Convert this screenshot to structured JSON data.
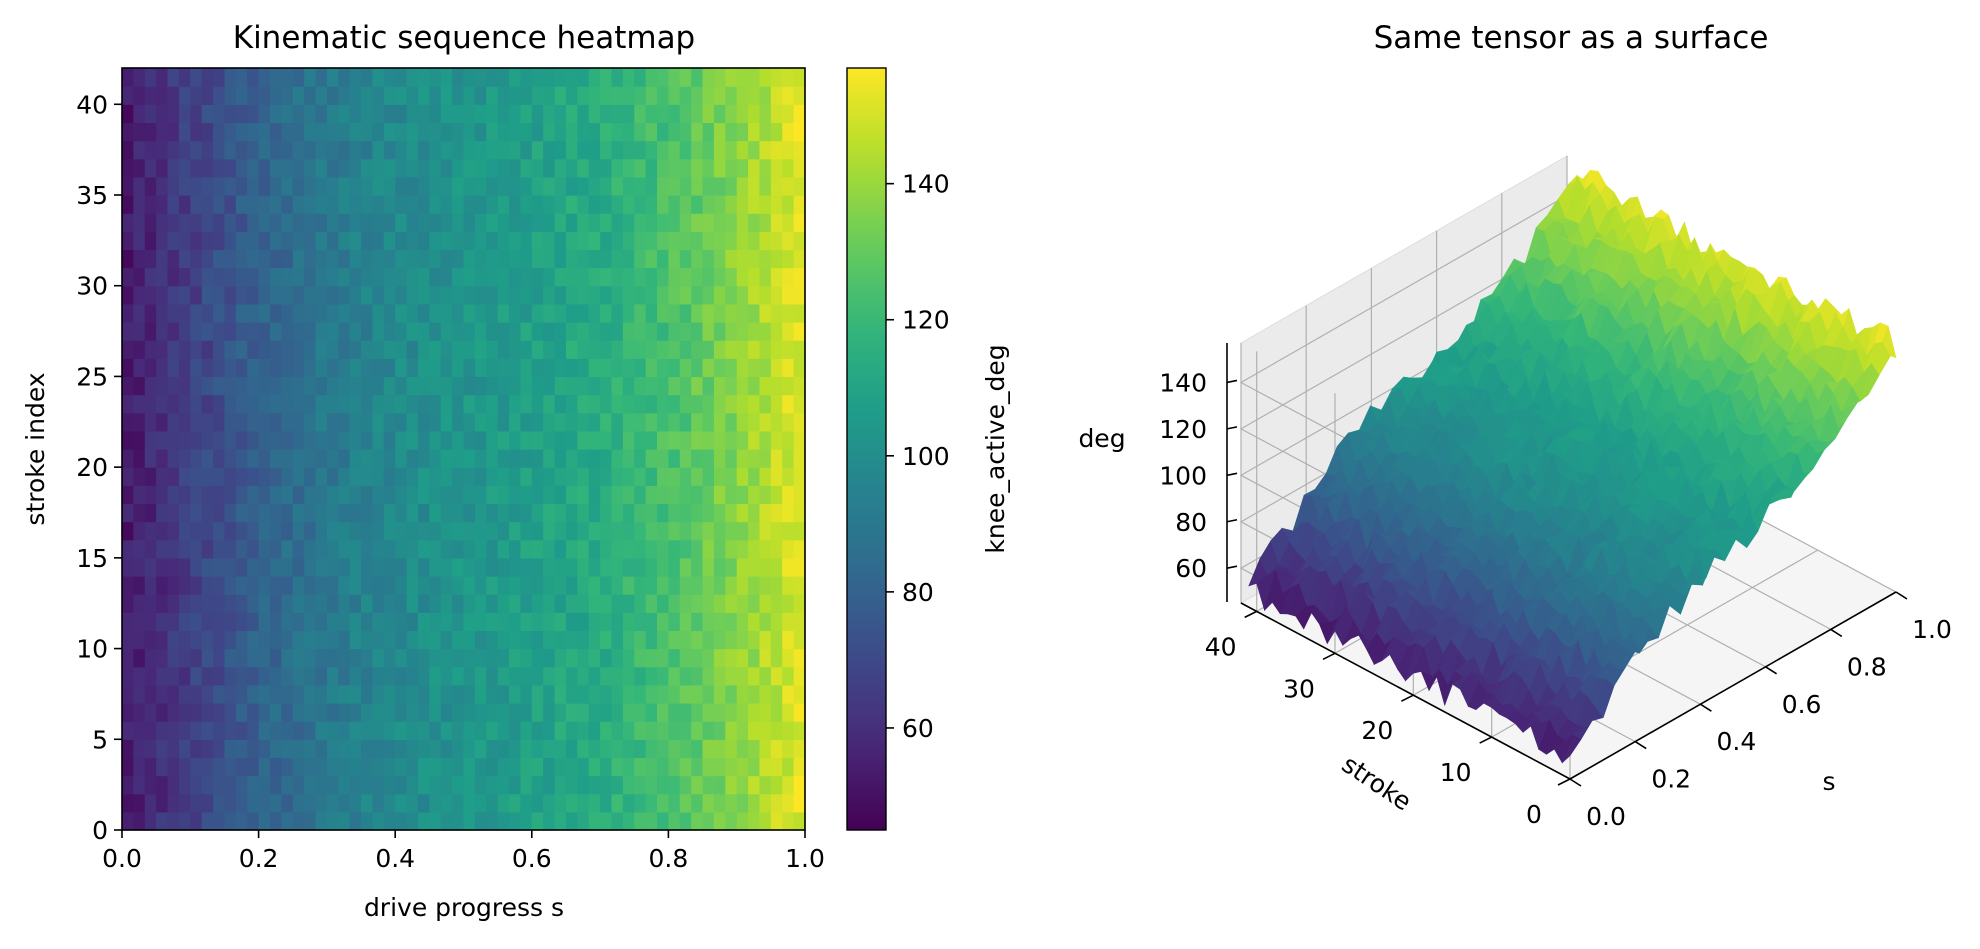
{
  "chart_data": [
    {
      "type": "heatmap",
      "title": "Kinematic sequence heatmap",
      "xlabel": "drive progress s",
      "ylabel": "stroke index",
      "xlim": [
        0.0,
        1.0
      ],
      "ylim": [
        0,
        42
      ],
      "x_ticks": [
        "0.0",
        "0.2",
        "0.4",
        "0.6",
        "0.8",
        "1.0"
      ],
      "y_ticks": [
        "0",
        "5",
        "10",
        "15",
        "20",
        "25",
        "30",
        "35",
        "40"
      ],
      "n_strokes": 42,
      "n_samples": 60,
      "colormap": "viridis",
      "colorbar": {
        "label": "knee_active_deg",
        "range": [
          45,
          157
        ],
        "ticks": [
          "60",
          "80",
          "100",
          "120",
          "140"
        ]
      },
      "value_model": {
        "description_of_trend": "knee angle rises with drive progress, roughly 50 at s=0 to about 155 at s=1, independent of stroke index, with random noise",
        "profile_s": [
          0.0,
          0.1,
          0.2,
          0.3,
          0.4,
          0.5,
          0.6,
          0.7,
          0.8,
          0.9,
          1.0
        ],
        "profile_deg": [
          52,
          66,
          80,
          90,
          98,
          103,
          108,
          114,
          124,
          137,
          153
        ]
      }
    },
    {
      "type": "surface",
      "title": "Same tensor as a surface",
      "xlabel": "s",
      "ylabel": "stroke",
      "zlabel": "deg",
      "x_ticks": [
        "0.0",
        "0.2",
        "0.4",
        "0.6",
        "0.8",
        "1.0"
      ],
      "y_ticks": [
        "0",
        "10",
        "20",
        "30",
        "40"
      ],
      "z_ticks": [
        "60",
        "80",
        "100",
        "120",
        "140"
      ],
      "zlim": [
        45,
        157
      ],
      "colormap": "viridis"
    }
  ]
}
